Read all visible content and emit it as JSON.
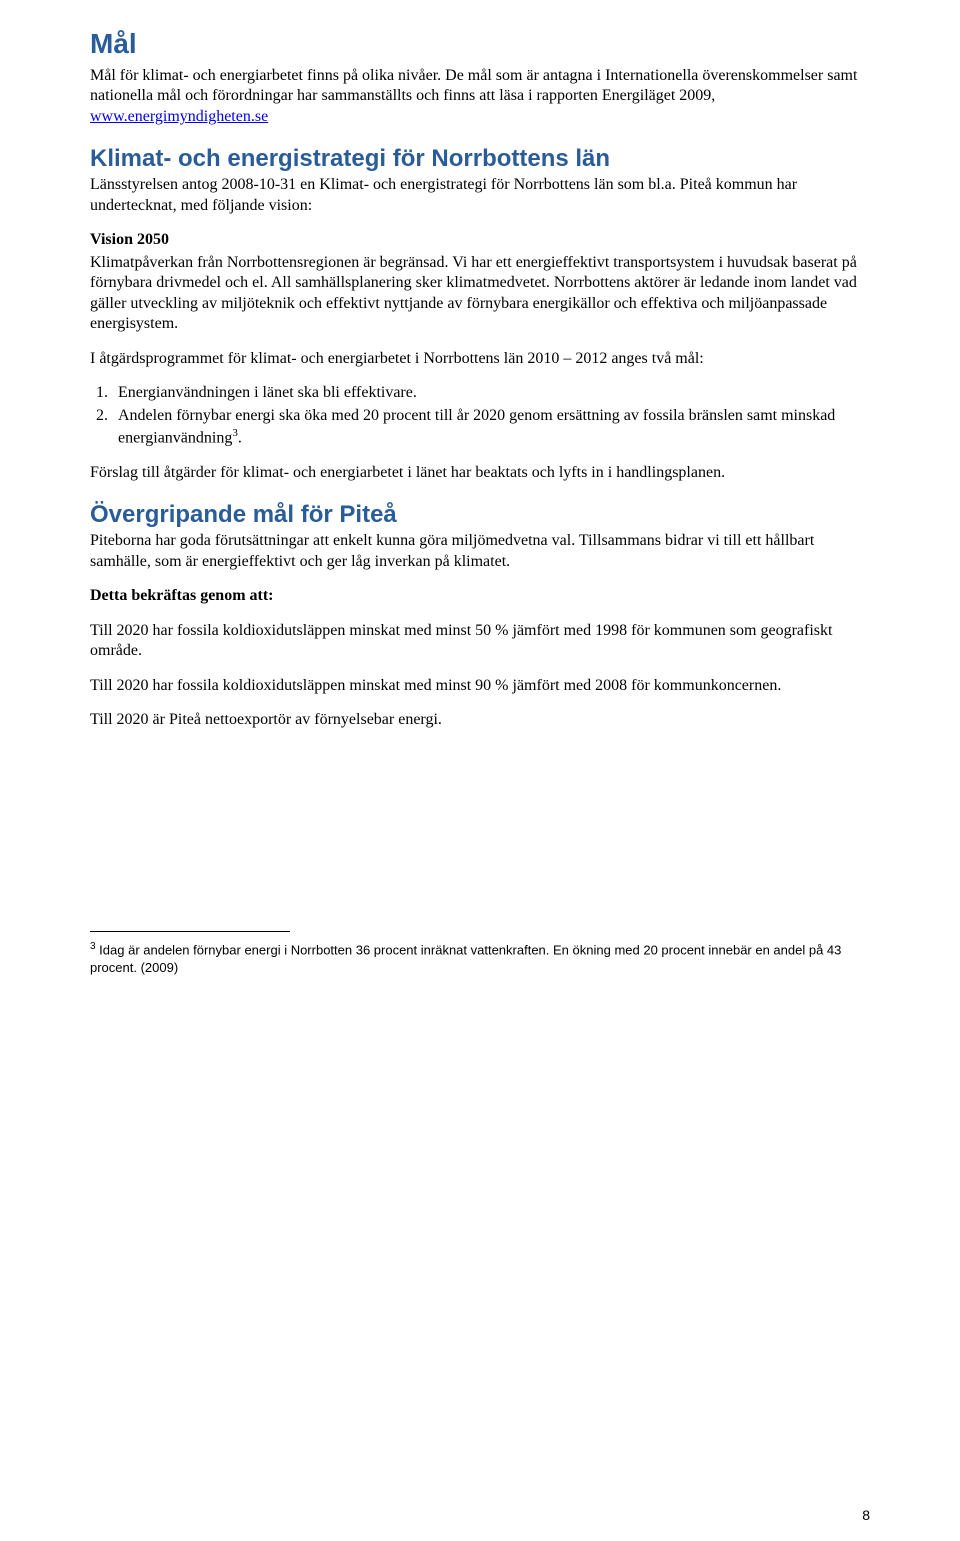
{
  "title": "Mål",
  "intro": {
    "p1a": "Mål för klimat- och energiarbetet finns på olika nivåer. De mål som är antagna i Internationella överenskommelser samt nationella mål och förordningar har sammanställts och finns att läsa i rapporten Energiläget 2009, ",
    "link": "www.energimyndigheten.se"
  },
  "sec1": {
    "heading": "Klimat- och energistrategi för Norrbottens län",
    "p1": "Länsstyrelsen antog 2008-10-31 en Klimat- och energistrategi för Norrbottens län som bl.a. Piteå kommun har undertecknat, med följande vision:",
    "vision_label": "Vision 2050",
    "p2": "Klimatpåverkan från Norrbottensregionen är begränsad. Vi har ett energieffektivt transportsystem i huvudsak baserat på förnybara drivmedel och el. All samhällsplanering sker klimatmedvetet. Norrbottens aktörer är ledande inom landet vad gäller utveckling av miljöteknik och effektivt nyttjande av förnybara energikällor och effektiva och miljöanpassade energisystem.",
    "p3": "I åtgärdsprogrammet för klimat- och energiarbetet i Norrbottens län 2010 – 2012 anges två mål:",
    "goals": [
      "Energianvändningen i länet ska bli effektivare.",
      "Andelen förnybar energi ska öka med 20 procent till år 2020 genom ersättning av fossila bränslen samt minskad energianvändning"
    ],
    "goal2_sup": "3",
    "goal2_tail": ".",
    "p4": "Förslag till åtgärder för klimat- och energiarbetet i länet har beaktats och lyfts in i handlingsplanen."
  },
  "sec2": {
    "heading": "Övergripande mål för Piteå",
    "p1": "Piteborna har goda förutsättningar att enkelt kunna göra miljömedvetna val. Tillsammans bidrar vi till ett hållbart samhälle, som är energieffektivt och ger låg inverkan på klimatet.",
    "confirm_label": "Detta bekräftas genom att:",
    "p2": "Till 2020 har fossila koldioxidutsläppen minskat med minst 50 % jämfört med 1998 för kommunen som geografiskt område.",
    "p3": "Till 2020 har fossila koldioxidutsläppen minskat med minst 90 % jämfört med 2008 för kommunkoncernen.",
    "p4": "Till 2020 är Piteå nettoexportör av förnyelsebar energi."
  },
  "footnote": {
    "sup": "3",
    "text": " Idag är andelen förnybar energi i Norrbotten 36 procent inräknat vattenkraften. En ökning med 20 procent innebär en andel på 43 procent. (2009)"
  },
  "page_number": "8"
}
